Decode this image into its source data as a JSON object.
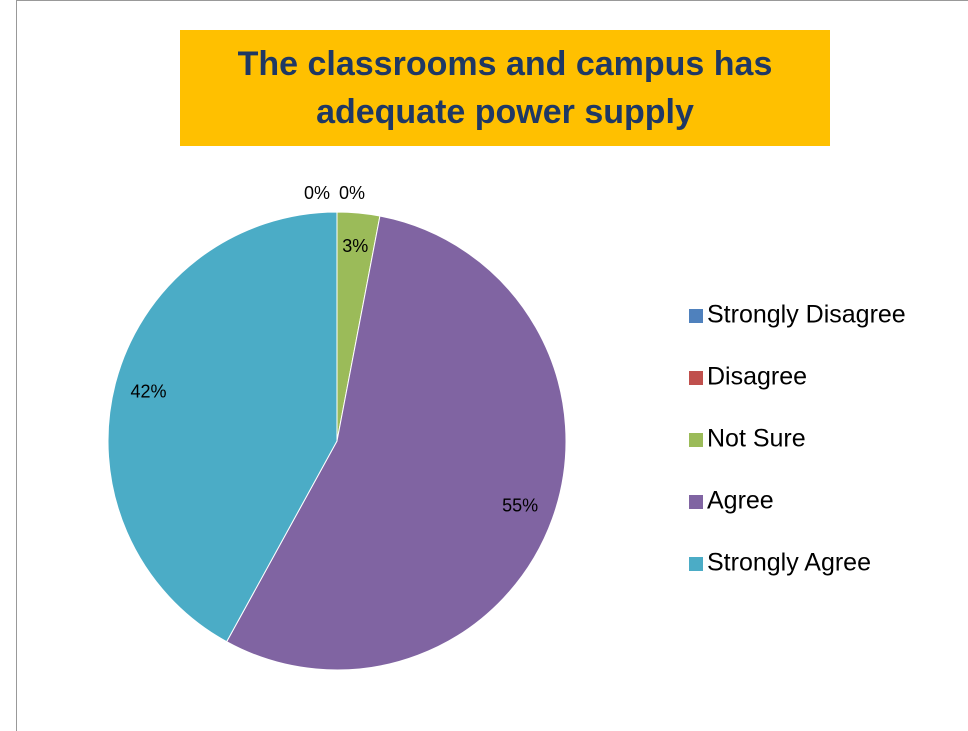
{
  "chart_data": {
    "type": "pie",
    "title": "The classrooms and campus has adequate power supply",
    "categories": [
      "Strongly Disagree",
      "Disagree",
      "Not Sure",
      "Agree",
      "Strongly Agree"
    ],
    "values": [
      0,
      0,
      3,
      55,
      42
    ],
    "value_labels": [
      "0%",
      "0%",
      "3%",
      "55%",
      "42%"
    ],
    "colors": [
      "#4f81bd",
      "#c0504d",
      "#9bbb59",
      "#8064a2",
      "#4bacc6"
    ],
    "legend": "right"
  }
}
